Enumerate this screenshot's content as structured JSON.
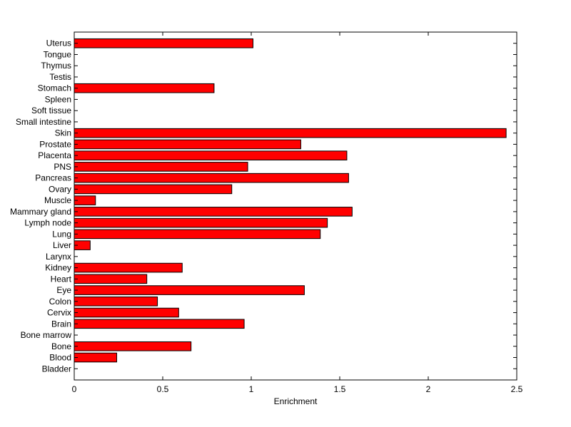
{
  "chart_data": {
    "type": "bar",
    "orientation": "horizontal",
    "title": "",
    "xlabel": "Enrichment",
    "ylabel": "",
    "xlim": [
      0,
      2.5
    ],
    "xticks": [
      "0",
      "0.5",
      "1",
      "1.5",
      "2",
      "2.5"
    ],
    "grid": false,
    "legend": "none",
    "bar_color": "#ff0000",
    "bar_edge_color": "#000000",
    "categories": [
      "Bladder",
      "Blood",
      "Bone",
      "Bone marrow",
      "Brain",
      "Cervix",
      "Colon",
      "Eye",
      "Heart",
      "Kidney",
      "Larynx",
      "Liver",
      "Lung",
      "Lymph node",
      "Mammary gland",
      "Muscle",
      "Ovary",
      "Pancreas",
      "PNS",
      "Placenta",
      "Prostate",
      "Skin",
      "Small intestine",
      "Soft tissue",
      "Spleen",
      "Stomach",
      "Testis",
      "Thymus",
      "Tongue",
      "Uterus"
    ],
    "values": [
      0,
      0.24,
      0.66,
      0,
      0.96,
      0.59,
      0.47,
      1.3,
      0.41,
      0.61,
      0,
      0.09,
      1.39,
      1.43,
      1.57,
      0.12,
      0.89,
      1.55,
      0.98,
      1.54,
      1.28,
      2.44,
      0,
      0,
      0,
      0.79,
      0,
      0,
      0,
      1.01
    ]
  }
}
